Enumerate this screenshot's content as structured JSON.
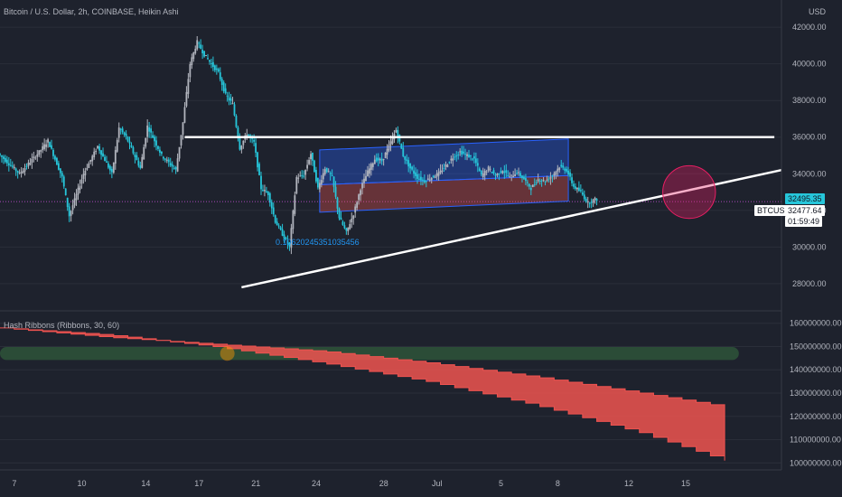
{
  "main_title": "Bitcoin / U.S. Dollar, 2h, COINBASE, Heikin Ashi",
  "currency": "USD",
  "symbol": "BTCUSD",
  "price_labels": {
    "upper": "32495.35",
    "current": "32477.64",
    "countdown": "01:59:49"
  },
  "annotation": "0.10620245351035456",
  "indicator_title": "Hash Ribbons (Ribbons, 30, 60)",
  "colors": {
    "background": "#1e222d",
    "up_candle": "#b2b5be",
    "down_candle": "#26c6da",
    "channel_blue": "#2962ff",
    "channel_red": "#ef5350",
    "ribbon": "#ef5350",
    "green_band": "#4caf50",
    "white_line": "#ffffff"
  },
  "chart_data": [
    {
      "type": "candlestick",
      "title": "Bitcoin / U.S. Dollar, 2h, COINBASE, Heikin Ashi",
      "y_ticks": [
        28000,
        30000,
        32000,
        34000,
        36000,
        38000,
        40000,
        42000
      ],
      "y_tick_labels": [
        "28000.00",
        "30000.00",
        "32000.00",
        "34000.00",
        "36000.00",
        "38000.00",
        "40000.00",
        "42000.00"
      ],
      "ylim": [
        27500,
        42500
      ],
      "x_ticks": [
        "7",
        "10",
        "14",
        "17",
        "21",
        "24",
        "28",
        "Jul",
        "5",
        "8",
        "12",
        "15"
      ],
      "price_path": [
        [
          0,
          35100
        ],
        [
          3,
          34000
        ],
        [
          6,
          35300
        ],
        [
          7,
          35800
        ],
        [
          9,
          33800
        ],
        [
          10,
          31700
        ],
        [
          12,
          34000
        ],
        [
          14,
          35500
        ],
        [
          16,
          34000
        ],
        [
          17,
          36500
        ],
        [
          18,
          36000
        ],
        [
          20,
          34300
        ],
        [
          21,
          36600
        ],
        [
          23,
          35000
        ],
        [
          25,
          34200
        ],
        [
          26,
          36800
        ],
        [
          27,
          40000
        ],
        [
          28,
          41200
        ],
        [
          29,
          40500
        ],
        [
          30,
          40000
        ],
        [
          31,
          39500
        ],
        [
          32,
          38300
        ],
        [
          33,
          37800
        ],
        [
          34,
          35400
        ],
        [
          35,
          36200
        ],
        [
          36,
          35700
        ],
        [
          37,
          33200
        ],
        [
          38,
          32900
        ],
        [
          39,
          31400
        ],
        [
          40,
          30700
        ],
        [
          41,
          30000
        ],
        [
          42,
          33800
        ],
        [
          43,
          33900
        ],
        [
          44,
          35100
        ],
        [
          45,
          33200
        ],
        [
          46,
          34300
        ],
        [
          47,
          33800
        ],
        [
          48,
          31600
        ],
        [
          49,
          30800
        ],
        [
          50,
          31800
        ],
        [
          51,
          33200
        ],
        [
          52,
          34100
        ],
        [
          53,
          34800
        ],
        [
          54,
          34700
        ],
        [
          55,
          35500
        ],
        [
          56,
          36400
        ],
        [
          57,
          35000
        ],
        [
          58,
          34300
        ],
        [
          59,
          33800
        ],
        [
          60,
          33600
        ],
        [
          62,
          34000
        ],
        [
          64,
          34900
        ],
        [
          65,
          35200
        ],
        [
          66,
          35000
        ],
        [
          67,
          34800
        ],
        [
          68,
          33900
        ],
        [
          69,
          34300
        ],
        [
          70,
          33900
        ],
        [
          71,
          34200
        ],
        [
          72,
          33800
        ],
        [
          73,
          34100
        ],
        [
          74,
          33700
        ],
        [
          75,
          33200
        ],
        [
          76,
          33700
        ],
        [
          77,
          33600
        ],
        [
          78,
          33900
        ],
        [
          79,
          34400
        ],
        [
          80,
          34200
        ],
        [
          81,
          33300
        ],
        [
          82,
          33000
        ],
        [
          83,
          32400
        ],
        [
          84,
          32600
        ]
      ],
      "channel": {
        "blue_zone": {
          "start": [
            45,
            35300
          ],
          "end": [
            80,
            35900
          ]
        },
        "red_zone_top": {
          "start": [
            45,
            33400
          ],
          "end": [
            80,
            33900
          ]
        },
        "bottom": {
          "start": [
            45,
            31900
          ],
          "end": [
            80,
            32500
          ]
        }
      },
      "resistance_line": {
        "start": [
          26,
          36000
        ],
        "end": [
          109,
          36000
        ]
      },
      "support_line": {
        "start": [
          34,
          27800
        ],
        "end": [
          110,
          34200
        ]
      },
      "circle_marker": {
        "center": [
          97,
          33000
        ],
        "radius_price": 1200
      }
    },
    {
      "type": "area",
      "title": "Hash Ribbons (Ribbons, 30, 60)",
      "y_ticks": [
        100000000,
        110000000,
        120000000,
        130000000,
        140000000,
        150000000,
        160000000
      ],
      "y_tick_labels": [
        "100000000.00",
        "110000000.00",
        "120000000.00",
        "130000000.00",
        "140000000.00",
        "150000000.00",
        "160000000.00"
      ],
      "ylim": [
        97000000,
        163000000
      ],
      "upper_line": [
        [
          0,
          158000000
        ],
        [
          15,
          154000000
        ],
        [
          30,
          151000000
        ],
        [
          45,
          148000000
        ],
        [
          60,
          143000000
        ],
        [
          75,
          137000000
        ],
        [
          90,
          130000000
        ],
        [
          102,
          124000000
        ]
      ],
      "lower_line": [
        [
          0,
          158000000
        ],
        [
          15,
          155000000
        ],
        [
          30,
          150000000
        ],
        [
          45,
          143000000
        ],
        [
          60,
          135000000
        ],
        [
          75,
          125000000
        ],
        [
          90,
          113000000
        ],
        [
          102,
          101000000
        ]
      ],
      "green_band": {
        "from": 0,
        "to": 104,
        "value": 147000000,
        "half_width": 2800000
      },
      "marker": {
        "x": 32,
        "value": 147000000
      }
    }
  ]
}
